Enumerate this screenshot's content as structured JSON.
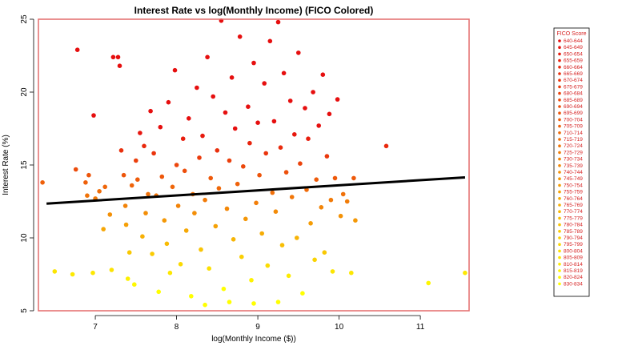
{
  "chart_data": {
    "type": "scatter",
    "title": "Interest Rate vs log(Monthly Income) (FICO Colored)",
    "xlabel": "log(Monthly Income ($))",
    "ylabel": "Interest Rate (%)",
    "xlim": [
      6.3,
      11.6
    ],
    "ylim": [
      5,
      25
    ],
    "xticks": [
      7,
      8,
      9,
      10,
      11
    ],
    "yticks": [
      5,
      10,
      15,
      20,
      25
    ],
    "grid": false,
    "regression_line": {
      "x": [
        6.4,
        11.55
      ],
      "y": [
        12.35,
        14.15
      ],
      "color": "#000000"
    },
    "legend": {
      "title": "FICO Score",
      "placement": "right",
      "entries": [
        "640-644",
        "645-649",
        "650-654",
        "655-659",
        "660-664",
        "665-669",
        "670-674",
        "675-679",
        "680-684",
        "685-689",
        "690-694",
        "695-699",
        "700-704",
        "705-709",
        "710-714",
        "715-719",
        "720-724",
        "725-729",
        "730-734",
        "735-739",
        "740-744",
        "745-749",
        "750-754",
        "755-759",
        "760-764",
        "765-769",
        "770-774",
        "775-779",
        "780-784",
        "785-789",
        "790-794",
        "795-799",
        "800-804",
        "805-809",
        "810-814",
        "815-819",
        "820-824",
        "830-834"
      ]
    },
    "colors": {
      "palette_start": "#e60f0f",
      "palette_end": "#ffff00",
      "frame": "#e46b6b"
    },
    "series": [
      {
        "points": [
          [
            6.35,
            13.8
          ],
          [
            6.5,
            7.7
          ],
          [
            6.72,
            7.5
          ],
          [
            6.76,
            14.7
          ],
          [
            6.78,
            22.9
          ],
          [
            6.88,
            13.8
          ],
          [
            6.9,
            12.9
          ],
          [
            6.92,
            14.3
          ],
          [
            6.97,
            7.6
          ],
          [
            6.98,
            18.4
          ],
          [
            7.0,
            12.7
          ],
          [
            7.05,
            13.2
          ],
          [
            7.1,
            10.6
          ],
          [
            7.12,
            13.5
          ],
          [
            7.18,
            11.6
          ],
          [
            7.2,
            7.8
          ],
          [
            7.22,
            22.4
          ],
          [
            7.28,
            22.4
          ],
          [
            7.3,
            21.8
          ],
          [
            7.32,
            16.0
          ],
          [
            7.35,
            14.3
          ],
          [
            7.37,
            12.2
          ],
          [
            7.38,
            10.9
          ],
          [
            7.4,
            7.2
          ],
          [
            7.42,
            9.0
          ],
          [
            7.45,
            13.6
          ],
          [
            7.48,
            6.8
          ],
          [
            7.5,
            15.3
          ],
          [
            7.52,
            14.0
          ],
          [
            7.55,
            17.2
          ],
          [
            7.58,
            10.1
          ],
          [
            7.6,
            16.3
          ],
          [
            7.62,
            11.7
          ],
          [
            7.65,
            13.0
          ],
          [
            7.68,
            18.7
          ],
          [
            7.7,
            8.9
          ],
          [
            7.72,
            15.8
          ],
          [
            7.75,
            12.9
          ],
          [
            7.78,
            6.3
          ],
          [
            7.8,
            17.6
          ],
          [
            7.82,
            14.2
          ],
          [
            7.85,
            11.2
          ],
          [
            7.88,
            9.6
          ],
          [
            7.9,
            19.3
          ],
          [
            7.92,
            7.6
          ],
          [
            7.95,
            13.5
          ],
          [
            7.98,
            21.5
          ],
          [
            8.0,
            15.0
          ],
          [
            8.02,
            12.2
          ],
          [
            8.05,
            8.2
          ],
          [
            8.08,
            16.8
          ],
          [
            8.1,
            14.6
          ],
          [
            8.12,
            10.5
          ],
          [
            8.15,
            18.2
          ],
          [
            8.18,
            6.0
          ],
          [
            8.2,
            13.0
          ],
          [
            8.22,
            11.7
          ],
          [
            8.25,
            20.3
          ],
          [
            8.28,
            15.5
          ],
          [
            8.3,
            9.2
          ],
          [
            8.32,
            17.0
          ],
          [
            8.35,
            12.6
          ],
          [
            8.38,
            22.4
          ],
          [
            8.4,
            7.9
          ],
          [
            8.42,
            14.1
          ],
          [
            8.45,
            19.7
          ],
          [
            8.48,
            10.8
          ],
          [
            8.5,
            16.0
          ],
          [
            8.52,
            13.4
          ],
          [
            8.55,
            24.9
          ],
          [
            8.58,
            6.5
          ],
          [
            8.6,
            18.6
          ],
          [
            8.62,
            12.0
          ],
          [
            8.65,
            15.3
          ],
          [
            8.68,
            21.0
          ],
          [
            8.7,
            9.9
          ],
          [
            8.72,
            17.5
          ],
          [
            8.75,
            13.7
          ],
          [
            8.78,
            23.8
          ],
          [
            8.8,
            8.7
          ],
          [
            8.82,
            14.9
          ],
          [
            8.85,
            11.3
          ],
          [
            8.88,
            19.0
          ],
          [
            8.9,
            16.5
          ],
          [
            8.92,
            7.1
          ],
          [
            8.95,
            22.0
          ],
          [
            8.98,
            12.4
          ],
          [
            9.0,
            17.9
          ],
          [
            9.02,
            14.3
          ],
          [
            9.05,
            10.3
          ],
          [
            9.08,
            20.6
          ],
          [
            9.1,
            15.8
          ],
          [
            9.12,
            8.1
          ],
          [
            9.15,
            23.5
          ],
          [
            9.18,
            13.1
          ],
          [
            9.2,
            18.0
          ],
          [
            9.22,
            11.8
          ],
          [
            9.25,
            24.8
          ],
          [
            9.28,
            16.2
          ],
          [
            9.3,
            9.5
          ],
          [
            9.32,
            21.3
          ],
          [
            9.35,
            14.5
          ],
          [
            9.38,
            7.4
          ],
          [
            9.4,
            19.4
          ],
          [
            9.42,
            12.8
          ],
          [
            9.45,
            17.1
          ],
          [
            9.48,
            10.0
          ],
          [
            9.5,
            22.7
          ],
          [
            9.52,
            15.1
          ],
          [
            9.55,
            6.2
          ],
          [
            9.58,
            18.9
          ],
          [
            9.6,
            13.3
          ],
          [
            9.62,
            16.8
          ],
          [
            9.65,
            11.0
          ],
          [
            9.68,
            20.0
          ],
          [
            9.7,
            8.5
          ],
          [
            9.72,
            14.0
          ],
          [
            9.75,
            17.7
          ],
          [
            9.78,
            12.1
          ],
          [
            9.8,
            21.2
          ],
          [
            9.82,
            9.0
          ],
          [
            9.85,
            15.6
          ],
          [
            9.88,
            18.5
          ],
          [
            9.9,
            12.6
          ],
          [
            9.92,
            7.7
          ],
          [
            9.95,
            14.1
          ],
          [
            9.98,
            19.5
          ],
          [
            10.02,
            11.5
          ],
          [
            10.05,
            13.0
          ],
          [
            10.1,
            12.5
          ],
          [
            10.15,
            7.6
          ],
          [
            10.18,
            14.1
          ],
          [
            10.2,
            11.2
          ],
          [
            10.58,
            16.3
          ],
          [
            11.1,
            6.9
          ],
          [
            11.55,
            7.6
          ],
          [
            8.35,
            5.4
          ],
          [
            8.65,
            5.6
          ],
          [
            8.95,
            5.5
          ],
          [
            9.25,
            5.6
          ]
        ]
      }
    ]
  }
}
